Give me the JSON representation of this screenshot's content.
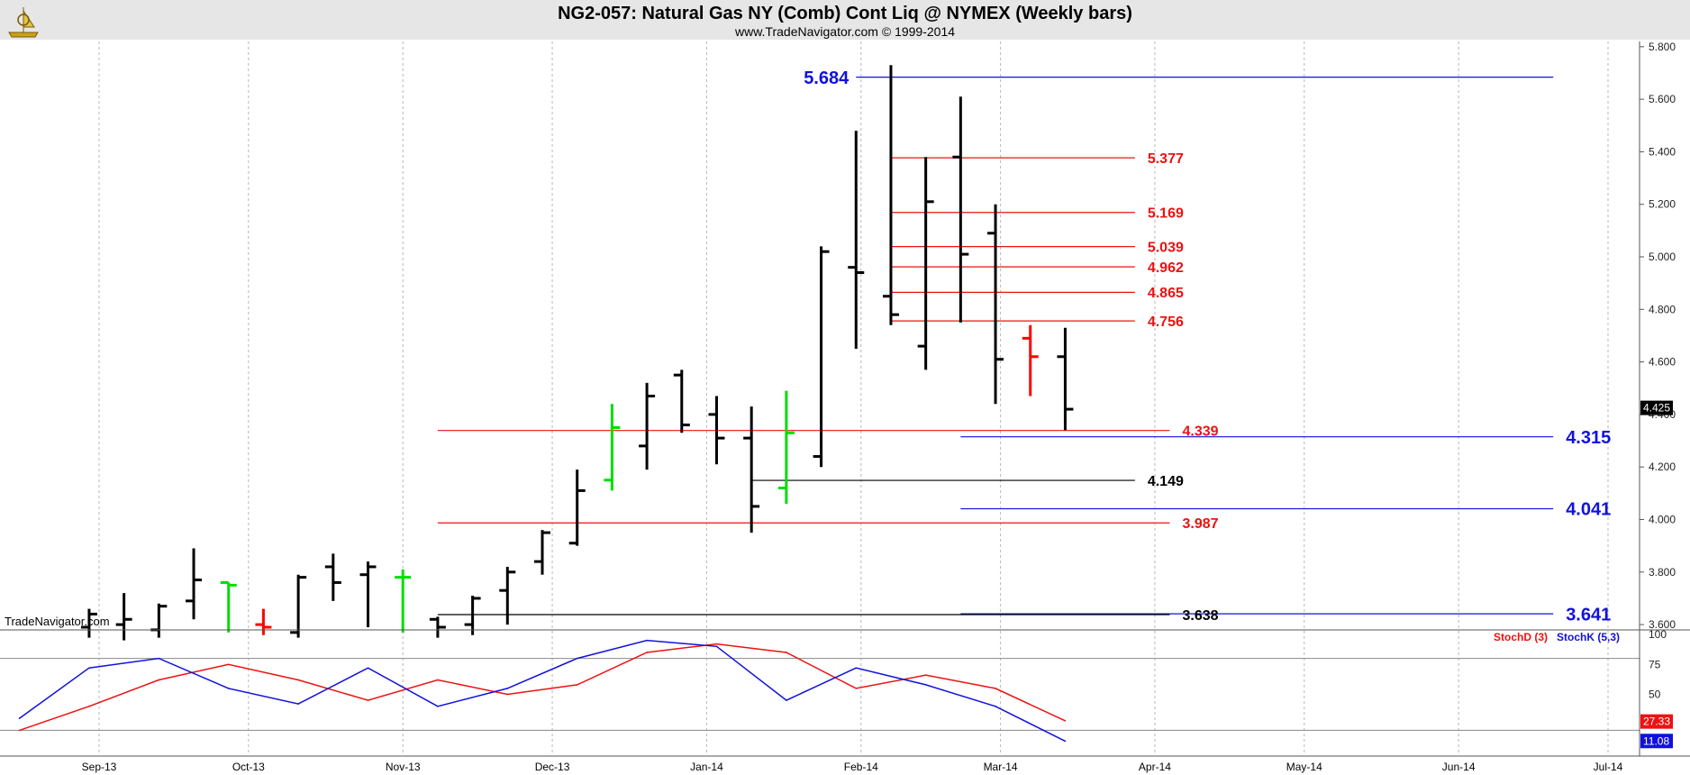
{
  "header": {
    "title": "NG2-057:  Natural Gas NY (Comb) Cont Liq @ NYMEX  (Weekly bars)",
    "subtitle": "www.TradeNavigator.com © 1999-2014",
    "logo_icon": "trade-navigator-logo-icon"
  },
  "watermark": "TradeNavigator.com",
  "colors": {
    "bar": "#000000",
    "bar_up": "#00dd00",
    "bar_down": "#ff0000",
    "level_red": "#ee1111",
    "level_blue": "#1111dd",
    "level_black": "#000000",
    "stochD": "#ee1111",
    "stochK": "#1111dd",
    "grid": "#b8b8b8",
    "hline": "#888888"
  },
  "chart_data": [
    {
      "type": "ohlc",
      "title": "NG2-057:  Natural Gas NY (Comb) Cont Liq @ NYMEX  (Weekly bars)",
      "x_tick_labels": [
        "Sep-13",
        "Oct-13",
        "Nov-13",
        "Dec-13",
        "Jan-14",
        "Feb-14",
        "Mar-14",
        "Apr-14",
        "May-14",
        "Jun-14",
        "Jul-14"
      ],
      "y_tick_labels": [
        "5.800",
        "5.600",
        "5.400",
        "5.200",
        "5.000",
        "4.800",
        "4.600",
        "4.400",
        "4.200",
        "4.000",
        "3.800",
        "3.600"
      ],
      "ylim": [
        3.59,
        5.82
      ],
      "grid": "vertical dotted",
      "last_price": "4.425",
      "bars": [
        {
          "week": "2013-08-30",
          "open": 3.59,
          "high": 3.66,
          "low": 3.55,
          "close": 3.64,
          "color": "black"
        },
        {
          "week": "2013-09-06",
          "open": 3.6,
          "high": 3.72,
          "low": 3.54,
          "close": 3.62,
          "color": "black"
        },
        {
          "week": "2013-09-13",
          "open": 3.58,
          "high": 3.68,
          "low": 3.55,
          "close": 3.67,
          "color": "black"
        },
        {
          "week": "2013-09-20",
          "open": 3.69,
          "high": 3.89,
          "low": 3.62,
          "close": 3.77,
          "color": "black"
        },
        {
          "week": "2013-09-27",
          "open": 3.76,
          "high": 3.76,
          "low": 3.57,
          "close": 3.75,
          "color": "up"
        },
        {
          "week": "2013-10-04",
          "open": 3.6,
          "high": 3.66,
          "low": 3.56,
          "close": 3.59,
          "color": "down"
        },
        {
          "week": "2013-10-11",
          "open": 3.57,
          "high": 3.79,
          "low": 3.55,
          "close": 3.78,
          "color": "black"
        },
        {
          "week": "2013-10-18",
          "open": 3.82,
          "high": 3.87,
          "low": 3.69,
          "close": 3.76,
          "color": "black"
        },
        {
          "week": "2013-10-25",
          "open": 3.79,
          "high": 3.84,
          "low": 3.59,
          "close": 3.82,
          "color": "black"
        },
        {
          "week": "2013-11-01",
          "open": 3.78,
          "high": 3.81,
          "low": 3.57,
          "close": 3.78,
          "color": "up"
        },
        {
          "week": "2013-11-08",
          "open": 3.62,
          "high": 3.63,
          "low": 3.55,
          "close": 3.59,
          "color": "black"
        },
        {
          "week": "2013-11-15",
          "open": 3.6,
          "high": 3.71,
          "low": 3.56,
          "close": 3.7,
          "color": "black"
        },
        {
          "week": "2013-11-22",
          "open": 3.73,
          "high": 3.82,
          "low": 3.6,
          "close": 3.8,
          "color": "black"
        },
        {
          "week": "2013-11-29",
          "open": 3.84,
          "high": 3.96,
          "low": 3.79,
          "close": 3.95,
          "color": "black"
        },
        {
          "week": "2013-12-06",
          "open": 3.91,
          "high": 4.19,
          "low": 3.9,
          "close": 4.11,
          "color": "black"
        },
        {
          "week": "2013-12-13",
          "open": 4.15,
          "high": 4.44,
          "low": 4.11,
          "close": 4.35,
          "color": "up"
        },
        {
          "week": "2013-12-20",
          "open": 4.28,
          "high": 4.52,
          "low": 4.19,
          "close": 4.47,
          "color": "black"
        },
        {
          "week": "2013-12-27",
          "open": 4.55,
          "high": 4.57,
          "low": 4.33,
          "close": 4.36,
          "color": "black"
        },
        {
          "week": "2014-01-03",
          "open": 4.4,
          "high": 4.47,
          "low": 4.21,
          "close": 4.31,
          "color": "black"
        },
        {
          "week": "2014-01-10",
          "open": 4.31,
          "high": 4.43,
          "low": 3.95,
          "close": 4.05,
          "color": "black"
        },
        {
          "week": "2014-01-17",
          "open": 4.12,
          "high": 4.49,
          "low": 4.06,
          "close": 4.33,
          "color": "up"
        },
        {
          "week": "2014-01-24",
          "open": 4.24,
          "high": 5.04,
          "low": 4.2,
          "close": 5.02,
          "color": "black"
        },
        {
          "week": "2014-01-31",
          "open": 4.96,
          "high": 5.48,
          "low": 4.65,
          "close": 4.94,
          "color": "black"
        },
        {
          "week": "2014-02-07",
          "open": 4.85,
          "high": 5.73,
          "low": 4.74,
          "close": 4.78,
          "color": "black"
        },
        {
          "week": "2014-02-14",
          "open": 4.66,
          "high": 5.38,
          "low": 4.57,
          "close": 5.21,
          "color": "black"
        },
        {
          "week": "2014-02-21",
          "open": 5.38,
          "high": 5.61,
          "low": 4.75,
          "close": 5.01,
          "color": "black"
        },
        {
          "week": "2014-02-28",
          "open": 5.09,
          "high": 5.2,
          "low": 4.44,
          "close": 4.61,
          "color": "black"
        },
        {
          "week": "2014-03-07",
          "open": 4.69,
          "high": 4.74,
          "low": 4.47,
          "close": 4.62,
          "color": "down"
        },
        {
          "week": "2014-03-14",
          "open": 4.62,
          "high": 4.73,
          "low": 4.34,
          "close": 4.42,
          "color": "black"
        }
      ],
      "levels": [
        {
          "value": 5.684,
          "label": "5.684",
          "color": "blue",
          "start": "2014-01-31",
          "end": "2014-06-20",
          "label_pos": "left"
        },
        {
          "value": 5.377,
          "label": "5.377",
          "color": "red",
          "start": "2014-02-07",
          "end": "2014-03-28",
          "label_pos": "right"
        },
        {
          "value": 5.169,
          "label": "5.169",
          "color": "red",
          "start": "2014-02-07",
          "end": "2014-03-28",
          "label_pos": "right"
        },
        {
          "value": 5.039,
          "label": "5.039",
          "color": "red",
          "start": "2014-02-07",
          "end": "2014-03-28",
          "label_pos": "right"
        },
        {
          "value": 4.962,
          "label": "4.962",
          "color": "red",
          "start": "2014-02-07",
          "end": "2014-03-28",
          "label_pos": "right"
        },
        {
          "value": 4.865,
          "label": "4.865",
          "color": "red",
          "start": "2014-02-07",
          "end": "2014-03-28",
          "label_pos": "right"
        },
        {
          "value": 4.756,
          "label": "4.756",
          "color": "red",
          "start": "2014-02-07",
          "end": "2014-03-28",
          "label_pos": "right"
        },
        {
          "value": 4.339,
          "label": "4.339",
          "color": "red",
          "start": "2013-11-08",
          "end": "2014-04-04",
          "label_pos": "right"
        },
        {
          "value": 4.315,
          "label": "4.315",
          "color": "blue",
          "start": "2014-02-21",
          "end": "2014-06-20",
          "label_pos": "right"
        },
        {
          "value": 4.149,
          "label": "4.149",
          "color": "black",
          "start": "2014-01-10",
          "end": "2014-03-28",
          "label_pos": "right"
        },
        {
          "value": 4.041,
          "label": "4.041",
          "color": "blue",
          "start": "2014-02-21",
          "end": "2014-06-20",
          "label_pos": "right"
        },
        {
          "value": 3.987,
          "label": "3.987",
          "color": "red",
          "start": "2013-11-08",
          "end": "2014-04-04",
          "label_pos": "right"
        },
        {
          "value": 3.641,
          "label": "3.641",
          "color": "blue",
          "start": "2014-02-21",
          "end": "2014-06-20",
          "label_pos": "right"
        },
        {
          "value": 3.638,
          "label": "3.638",
          "color": "black",
          "start": "2013-11-08",
          "end": "2014-04-04",
          "label_pos": "right"
        }
      ]
    },
    {
      "type": "line",
      "title": "",
      "legend": [
        "StochD (3)",
        "StochK (5,3)"
      ],
      "legend_placement": "top-right",
      "y_tick_labels": [
        "100",
        "75",
        "50"
      ],
      "ylim": [
        0,
        100
      ],
      "reference_lines": [
        80,
        20
      ],
      "last_values": {
        "StochD": "27.33",
        "StochK": "11.08"
      },
      "series": [
        {
          "name": "StochD (3)",
          "x": [
            "2013-08-16",
            "2013-08-30",
            "2013-09-13",
            "2013-09-27",
            "2013-10-11",
            "2013-10-25",
            "2013-11-08",
            "2013-11-22",
            "2013-12-06",
            "2013-12-20",
            "2014-01-03",
            "2014-01-17",
            "2014-01-31",
            "2014-02-14",
            "2014-02-28",
            "2014-03-14"
          ],
          "values": [
            20,
            40,
            62,
            75,
            62,
            45,
            62,
            50,
            58,
            85,
            92,
            85,
            55,
            66,
            55,
            28
          ]
        },
        {
          "name": "StochK (5,3)",
          "x": [
            "2013-08-16",
            "2013-08-30",
            "2013-09-13",
            "2013-09-27",
            "2013-10-11",
            "2013-10-25",
            "2013-11-08",
            "2013-11-22",
            "2013-12-06",
            "2013-12-20",
            "2014-01-03",
            "2014-01-17",
            "2014-01-31",
            "2014-02-14",
            "2014-02-28",
            "2014-03-14"
          ],
          "values": [
            30,
            72,
            80,
            55,
            42,
            72,
            40,
            55,
            80,
            95,
            90,
            45,
            72,
            58,
            40,
            11
          ]
        }
      ]
    }
  ]
}
